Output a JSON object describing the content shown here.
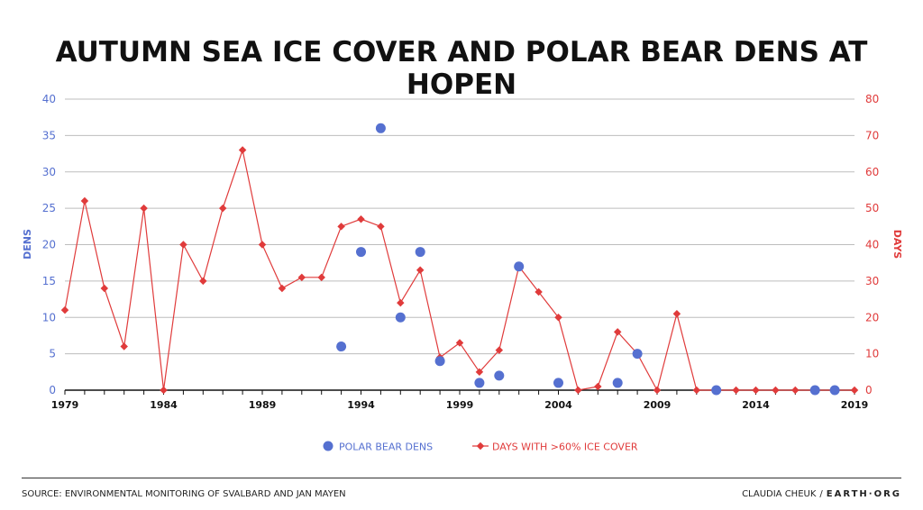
{
  "title": "AUTUMN SEA ICE COVER AND POLAR BEAR DENS AT HOPEN",
  "source": "SOURCE: ENVIRONMENTAL MONITORING OF SVALBARD AND JAN MAYEN",
  "credit_author": "CLAUDIA CHEUK",
  "credit_separator": "/",
  "credit_brand": "EARTH·ORG",
  "colors": {
    "dens": "#5570d0",
    "ice": "#e03b3b",
    "grid": "#bdbdbd",
    "axis": "#111111"
  },
  "chart_data": {
    "type": "scatter+line",
    "x_ticks": [
      "1979",
      "1984",
      "1989",
      "1994",
      "1999",
      "2004",
      "2009",
      "2014",
      "2019"
    ],
    "xlim": [
      1979,
      2019
    ],
    "left_axis": {
      "label": "DENS",
      "ylim": [
        0,
        40
      ],
      "ticks": [
        "0",
        "5",
        "10",
        "15",
        "20",
        "25",
        "30",
        "35",
        "40"
      ]
    },
    "right_axis": {
      "label": "DAYS",
      "ylim": [
        0,
        80
      ],
      "ticks": [
        "0",
        "10",
        "20",
        "30",
        "40",
        "50",
        "60",
        "70",
        "80"
      ]
    },
    "legend": {
      "placement": "bottom-center"
    },
    "series": [
      {
        "name": "POLAR BEAR DENS",
        "axis": "left",
        "type": "scatter",
        "x": [
          1993,
          1994,
          1995,
          1996,
          1997,
          1998,
          2000,
          2001,
          2002,
          2004,
          2007,
          2008,
          2012,
          2017,
          2018
        ],
        "y": [
          6,
          19,
          36,
          10,
          19,
          4,
          1,
          2,
          17,
          1,
          1,
          5,
          0,
          0,
          0
        ]
      },
      {
        "name": "DAYS WITH >60% ICE COVER",
        "axis": "right",
        "type": "line",
        "x": [
          1979,
          1980,
          1981,
          1982,
          1983,
          1984,
          1985,
          1986,
          1987,
          1988,
          1989,
          1990,
          1991,
          1992,
          1993,
          1994,
          1995,
          1996,
          1997,
          1998,
          1999,
          2000,
          2001,
          2002,
          2003,
          2004,
          2005,
          2006,
          2007,
          2008,
          2009,
          2010,
          2011,
          2012,
          2013,
          2014,
          2015,
          2016,
          2017,
          2018,
          2019
        ],
        "y": [
          22,
          52,
          28,
          12,
          50,
          0,
          40,
          30,
          50,
          66,
          40,
          28,
          31,
          31,
          45,
          47,
          45,
          24,
          33,
          9,
          13,
          5,
          11,
          34,
          27,
          20,
          0,
          1,
          16,
          10,
          0,
          21,
          0,
          0,
          0,
          0,
          0,
          0,
          0,
          0,
          0
        ]
      }
    ]
  }
}
